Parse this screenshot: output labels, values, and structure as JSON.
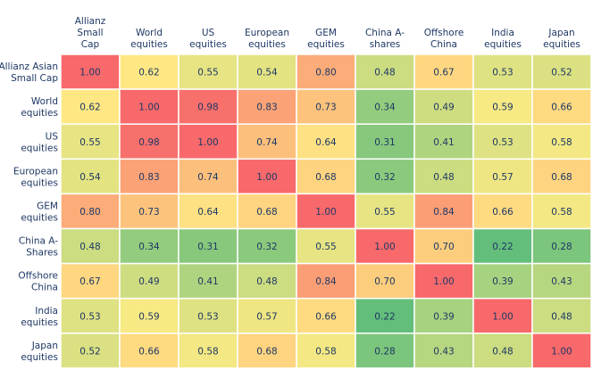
{
  "chart_data": {
    "type": "heatmap",
    "columns": [
      [
        "Allianz",
        "Small",
        "Cap"
      ],
      [
        "World",
        "equities"
      ],
      [
        "US",
        "equities"
      ],
      [
        "European",
        "equities"
      ],
      [
        "GEM",
        "equities"
      ],
      [
        "China A-",
        "shares"
      ],
      [
        "Offshore",
        "China"
      ],
      [
        "India",
        "equities"
      ],
      [
        "Japan",
        "equities"
      ]
    ],
    "rows": [
      [
        "Allianz Asian",
        "Small Cap"
      ],
      [
        "World",
        "equities"
      ],
      [
        "US",
        "equities"
      ],
      [
        "European",
        "equities"
      ],
      [
        "GEM",
        "equities"
      ],
      [
        "China A-",
        "Shares"
      ],
      [
        "Offshore",
        "China"
      ],
      [
        "India",
        "equities"
      ],
      [
        "Japan",
        "equities"
      ]
    ],
    "values": [
      [
        1.0,
        0.62,
        0.55,
        0.54,
        0.8,
        0.48,
        0.67,
        0.53,
        0.52
      ],
      [
        0.62,
        1.0,
        0.98,
        0.83,
        0.73,
        0.34,
        0.49,
        0.59,
        0.66
      ],
      [
        0.55,
        0.98,
        1.0,
        0.74,
        0.64,
        0.31,
        0.41,
        0.53,
        0.58
      ],
      [
        0.54,
        0.83,
        0.74,
        1.0,
        0.68,
        0.32,
        0.48,
        0.57,
        0.68
      ],
      [
        0.8,
        0.73,
        0.64,
        0.68,
        1.0,
        0.55,
        0.84,
        0.66,
        0.58
      ],
      [
        0.48,
        0.34,
        0.31,
        0.32,
        0.55,
        1.0,
        0.7,
        0.22,
        0.28
      ],
      [
        0.67,
        0.49,
        0.41,
        0.48,
        0.84,
        0.7,
        1.0,
        0.39,
        0.43
      ],
      [
        0.53,
        0.59,
        0.53,
        0.57,
        0.66,
        0.22,
        0.39,
        1.0,
        0.48
      ],
      [
        0.52,
        0.66,
        0.58,
        0.68,
        0.58,
        0.28,
        0.43,
        0.48,
        1.0
      ]
    ],
    "colors": {
      "scale": [
        "#63be7b",
        "#ffeb84",
        "#f8696b"
      ],
      "text": "#1f3864",
      "grid": "#ffffff"
    }
  }
}
